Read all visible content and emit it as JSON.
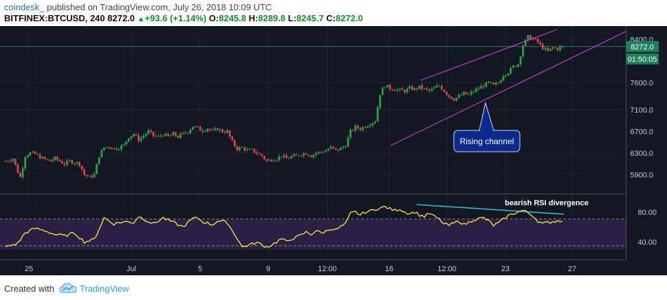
{
  "header": {
    "author": "coindesk_",
    "published": " published on TradingView.com, July 26, 2018 10:09 UTC",
    "symbol": "BITFINEX:BTCUSD, 240",
    "last": "8272.0",
    "change": "+93.6 (+1.14%)",
    "open_label": "O:",
    "open": "8245.8",
    "high_label": "H:",
    "high": "8289.8",
    "low_label": "L:",
    "low": "8245.7",
    "close_label": "C:",
    "close": "8272.0"
  },
  "footer": {
    "created_with": "Created with",
    "brand": "TradingView"
  },
  "colors": {
    "background": "#131722",
    "up_candle": "#26a641",
    "down_candle": "#e0424d",
    "channel": "#c23ecf",
    "rsi_line": "#ffeb3b",
    "rsi_band": "#2b1f45",
    "divergence": "#28c8e8",
    "price_tag": "#1e7f5e",
    "callout": "#0a2a8c"
  },
  "chart_data": [
    {
      "type": "candlestick",
      "title": "",
      "ylim": [
        5600,
        8600
      ],
      "y_ticks": [
        "5900.0",
        "6300.0",
        "6700.0",
        "7100.0",
        "7600.0",
        "8400.0"
      ],
      "x_ticks": [
        "25",
        "Jul",
        "5",
        "9",
        "12:00",
        "16",
        "12:00",
        "23",
        "27"
      ],
      "last_price_label": "8272.0",
      "countdown_label": "01:50:05",
      "annotations": [
        "Rising channel"
      ],
      "close_path": [
        [
          0,
          6150
        ],
        [
          3,
          6200
        ],
        [
          5,
          5950
        ],
        [
          6,
          5850
        ],
        [
          8,
          6250
        ],
        [
          10,
          6300
        ],
        [
          12,
          6280
        ],
        [
          15,
          6200
        ],
        [
          18,
          6150
        ],
        [
          20,
          6200
        ],
        [
          22,
          6150
        ],
        [
          24,
          6100
        ],
        [
          26,
          6150
        ],
        [
          28,
          6130
        ],
        [
          30,
          6100
        ],
        [
          32,
          5900
        ],
        [
          34,
          5850
        ],
        [
          36,
          5900
        ],
        [
          38,
          6250
        ],
        [
          40,
          6400
        ],
        [
          42,
          6420
        ],
        [
          44,
          6380
        ],
        [
          46,
          6400
        ],
        [
          48,
          6450
        ],
        [
          50,
          6600
        ],
        [
          52,
          6650
        ],
        [
          54,
          6550
        ],
        [
          56,
          6620
        ],
        [
          58,
          6700
        ],
        [
          60,
          6620
        ],
        [
          62,
          6600
        ],
        [
          64,
          6650
        ],
        [
          66,
          6600
        ],
        [
          68,
          6650
        ],
        [
          70,
          6600
        ],
        [
          72,
          6650
        ],
        [
          74,
          6700
        ],
        [
          76,
          6800
        ],
        [
          78,
          6760
        ],
        [
          80,
          6720
        ],
        [
          82,
          6760
        ],
        [
          84,
          6700
        ],
        [
          86,
          6750
        ],
        [
          88,
          6700
        ],
        [
          90,
          6700
        ],
        [
          92,
          6500
        ],
        [
          94,
          6380
        ],
        [
          96,
          6400
        ],
        [
          98,
          6350
        ],
        [
          100,
          6350
        ],
        [
          102,
          6300
        ],
        [
          104,
          6250
        ],
        [
          106,
          6150
        ],
        [
          108,
          6180
        ],
        [
          110,
          6200
        ],
        [
          112,
          6250
        ],
        [
          114,
          6200
        ],
        [
          116,
          6230
        ],
        [
          118,
          6250
        ],
        [
          120,
          6280
        ],
        [
          122,
          6300
        ],
        [
          124,
          6250
        ],
        [
          126,
          6300
        ],
        [
          128,
          6320
        ],
        [
          130,
          6350
        ],
        [
          132,
          6400
        ],
        [
          134,
          6350
        ],
        [
          136,
          6380
        ],
        [
          138,
          6450
        ],
        [
          140,
          6700
        ],
        [
          142,
          6780
        ],
        [
          144,
          6750
        ],
        [
          146,
          6800
        ],
        [
          148,
          6850
        ],
        [
          150,
          6900
        ],
        [
          152,
          7400
        ],
        [
          154,
          7550
        ],
        [
          156,
          7500
        ],
        [
          158,
          7480
        ],
        [
          160,
          7460
        ],
        [
          162,
          7450
        ],
        [
          164,
          7500
        ],
        [
          166,
          7480
        ],
        [
          168,
          7520
        ],
        [
          170,
          7480
        ],
        [
          172,
          7450
        ],
        [
          174,
          7500
        ],
        [
          176,
          7550
        ],
        [
          178,
          7450
        ],
        [
          180,
          7350
        ],
        [
          182,
          7300
        ],
        [
          184,
          7350
        ],
        [
          186,
          7400
        ],
        [
          188,
          7380
        ],
        [
          190,
          7450
        ],
        [
          192,
          7500
        ],
        [
          194,
          7550
        ],
        [
          196,
          7600
        ],
        [
          198,
          7550
        ],
        [
          200,
          7600
        ],
        [
          202,
          7750
        ],
        [
          204,
          7800
        ],
        [
          206,
          7900
        ],
        [
          208,
          7950
        ],
        [
          210,
          8300
        ],
        [
          212,
          8450
        ],
        [
          214,
          8420
        ],
        [
          216,
          8350
        ],
        [
          218,
          8250
        ],
        [
          220,
          8180
        ],
        [
          222,
          8250
        ],
        [
          224,
          8230
        ],
        [
          226,
          8272
        ]
      ]
    },
    {
      "type": "line",
      "title": "",
      "ylim": [
        20,
        100
      ],
      "y_ticks": [
        "40.00",
        "80.00"
      ],
      "band": [
        30,
        70
      ],
      "annotations": [
        "bearish RSI divergence"
      ],
      "rsi_path": [
        [
          0,
          33
        ],
        [
          5,
          38
        ],
        [
          8,
          52
        ],
        [
          12,
          58
        ],
        [
          16,
          55
        ],
        [
          20,
          50
        ],
        [
          24,
          48
        ],
        [
          28,
          52
        ],
        [
          32,
          40
        ],
        [
          36,
          43
        ],
        [
          40,
          72
        ],
        [
          44,
          64
        ],
        [
          48,
          67
        ],
        [
          52,
          66
        ],
        [
          54,
          74
        ],
        [
          56,
          71
        ],
        [
          60,
          64
        ],
        [
          64,
          72
        ],
        [
          68,
          66
        ],
        [
          72,
          60
        ],
        [
          76,
          71
        ],
        [
          78,
          72
        ],
        [
          80,
          67
        ],
        [
          84,
          63
        ],
        [
          86,
          68
        ],
        [
          90,
          66
        ],
        [
          92,
          55
        ],
        [
          94,
          45
        ],
        [
          96,
          33
        ],
        [
          98,
          35
        ],
        [
          100,
          37
        ],
        [
          102,
          39
        ],
        [
          104,
          36
        ],
        [
          106,
          33
        ],
        [
          108,
          36
        ],
        [
          110,
          40
        ],
        [
          112,
          44
        ],
        [
          114,
          40
        ],
        [
          116,
          44
        ],
        [
          118,
          46
        ],
        [
          120,
          49
        ],
        [
          122,
          53
        ],
        [
          124,
          50
        ],
        [
          126,
          55
        ],
        [
          128,
          52
        ],
        [
          130,
          54
        ],
        [
          132,
          58
        ],
        [
          134,
          56
        ],
        [
          136,
          60
        ],
        [
          138,
          64
        ],
        [
          140,
          78
        ],
        [
          142,
          80
        ],
        [
          144,
          76
        ],
        [
          146,
          80
        ],
        [
          148,
          81
        ],
        [
          150,
          84
        ],
        [
          152,
          85
        ],
        [
          154,
          87
        ],
        [
          156,
          84
        ],
        [
          158,
          82
        ],
        [
          160,
          84
        ],
        [
          162,
          80
        ],
        [
          164,
          78
        ],
        [
          166,
          80
        ],
        [
          168,
          76
        ],
        [
          170,
          74
        ],
        [
          172,
          78
        ],
        [
          174,
          74
        ],
        [
          176,
          70
        ],
        [
          178,
          64
        ],
        [
          180,
          62
        ],
        [
          182,
          65
        ],
        [
          184,
          68
        ],
        [
          186,
          63
        ],
        [
          188,
          66
        ],
        [
          190,
          70
        ],
        [
          192,
          71
        ],
        [
          194,
          72
        ],
        [
          196,
          68
        ],
        [
          198,
          62
        ],
        [
          200,
          65
        ],
        [
          202,
          70
        ],
        [
          204,
          75
        ],
        [
          206,
          78
        ],
        [
          208,
          80
        ],
        [
          210,
          82
        ],
        [
          212,
          79
        ],
        [
          214,
          75
        ],
        [
          216,
          68
        ],
        [
          218,
          64
        ],
        [
          220,
          66
        ],
        [
          222,
          67
        ],
        [
          224,
          68
        ],
        [
          226,
          69
        ]
      ]
    }
  ]
}
